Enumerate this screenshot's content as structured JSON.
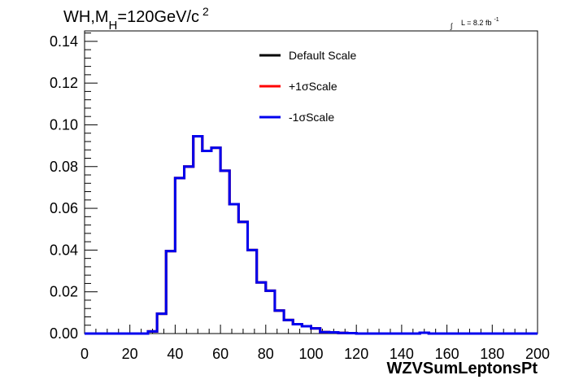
{
  "chart_data": {
    "type": "line",
    "title": "WH,M_H=120GeV/c^2",
    "title_parts": {
      "main": "WH,M",
      "sub": "H",
      "mid": "=120GeV/c",
      "sup": "2"
    },
    "xlabel": "WZVSumLeptonsPt",
    "ylabel": "",
    "xlim": [
      0,
      200
    ],
    "ylim": [
      0,
      0.145
    ],
    "x_ticks": [
      "0",
      "20",
      "40",
      "60",
      "80",
      "100",
      "120",
      "140",
      "160",
      "180",
      "200"
    ],
    "y_ticks": [
      "0.00",
      "0.02",
      "0.04",
      "0.06",
      "0.08",
      "0.10",
      "0.12",
      "0.14"
    ],
    "luminosity": {
      "integral": "∫",
      "label": "L = 8.2 fb",
      "sup": "-1"
    },
    "legend_position": "top-center",
    "bin_width": 4,
    "bin_edges_start": 0,
    "series": [
      {
        "name": "Default Scale",
        "color": "#000000",
        "values": [
          0,
          0,
          0,
          0,
          0,
          0,
          0,
          0.001,
          0.0095,
          0.0395,
          0.0745,
          0.08,
          0.0945,
          0.0875,
          0.089,
          0.078,
          0.062,
          0.0535,
          0.04,
          0.0245,
          0.0205,
          0.011,
          0.0065,
          0.0045,
          0.0035,
          0.0025,
          0.0007,
          0.0006,
          0.0003,
          0.0002,
          0,
          0,
          0,
          0,
          0,
          0,
          0,
          0.0004,
          0,
          0,
          0,
          0,
          0,
          0,
          0,
          0,
          0,
          0,
          0,
          0
        ]
      },
      {
        "name": "+1σScale",
        "color": "#ff0000",
        "values": [
          0,
          0,
          0,
          0,
          0,
          0,
          0,
          0.001,
          0.0095,
          0.0395,
          0.0745,
          0.08,
          0.0945,
          0.0875,
          0.089,
          0.078,
          0.062,
          0.0535,
          0.04,
          0.0245,
          0.0205,
          0.011,
          0.0065,
          0.0045,
          0.0035,
          0.0025,
          0.0007,
          0.0006,
          0.0003,
          0.0002,
          0,
          0,
          0,
          0,
          0,
          0,
          0,
          0.0004,
          0,
          0,
          0,
          0,
          0,
          0,
          0,
          0,
          0,
          0,
          0,
          0
        ]
      },
      {
        "name": "-1σScale",
        "color": "#0000ee",
        "values": [
          0,
          0,
          0,
          0,
          0,
          0,
          0,
          0.001,
          0.0095,
          0.0395,
          0.0745,
          0.08,
          0.0945,
          0.0875,
          0.089,
          0.078,
          0.062,
          0.0535,
          0.04,
          0.0245,
          0.0205,
          0.011,
          0.0065,
          0.0045,
          0.0035,
          0.0025,
          0.0007,
          0.0006,
          0.0003,
          0.0002,
          0,
          0,
          0,
          0,
          0,
          0,
          0,
          0.0004,
          0,
          0,
          0,
          0,
          0,
          0,
          0,
          0,
          0,
          0,
          0,
          0
        ]
      }
    ]
  }
}
